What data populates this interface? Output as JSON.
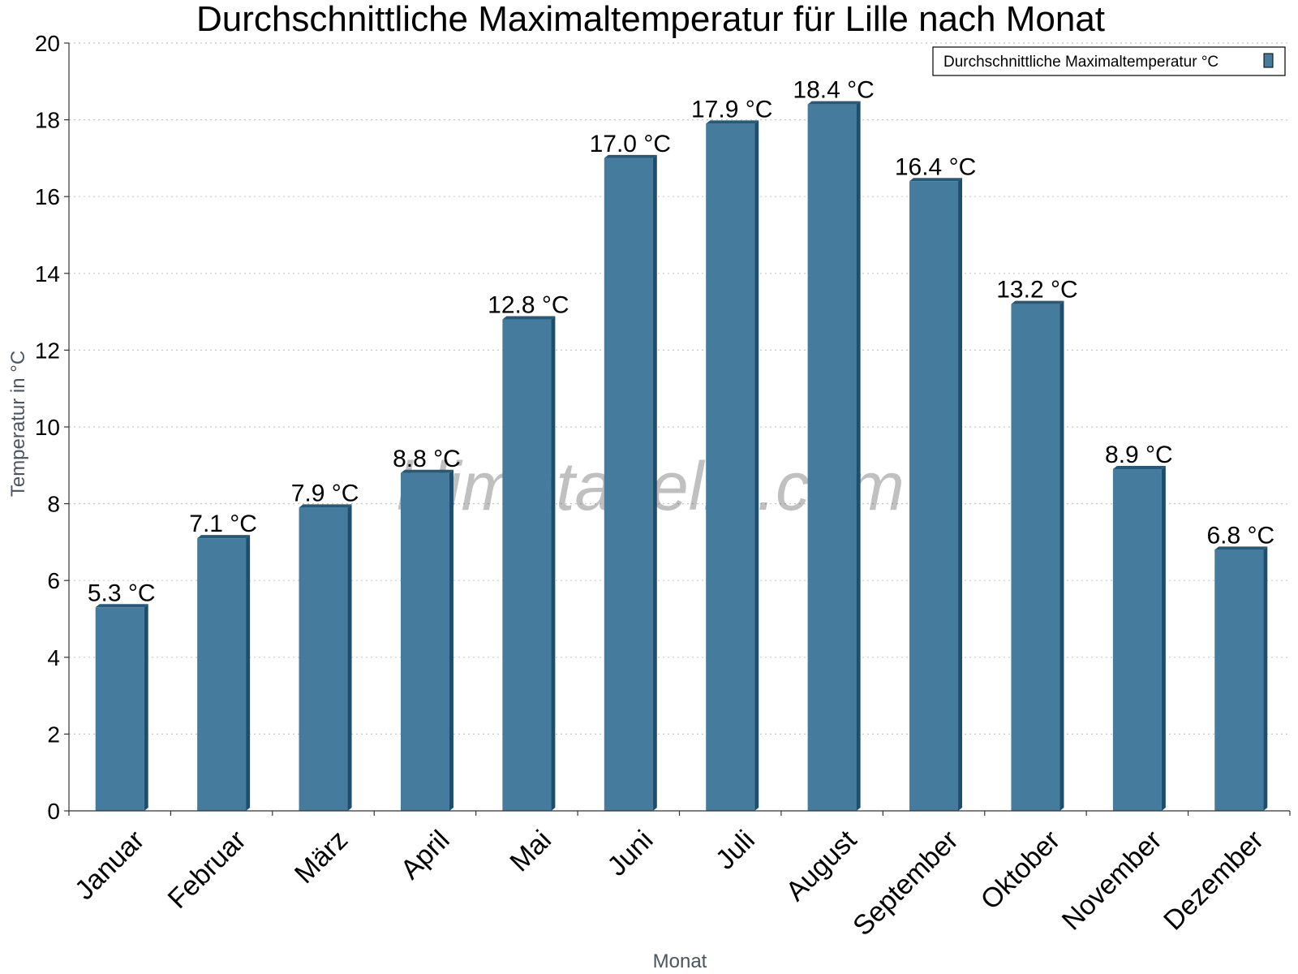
{
  "chart_data": {
    "type": "bar",
    "title": "Durchschnittliche Maximaltemperatur für Lille nach Monat",
    "xlabel": "Monat",
    "ylabel": "Temperatur in °C",
    "categories": [
      "Januar",
      "Februar",
      "März",
      "April",
      "Mai",
      "Juni",
      "Juli",
      "August",
      "September",
      "Oktober",
      "November",
      "Dezember"
    ],
    "series": [
      {
        "name": "Durchschnittliche Maximaltemperatur °C",
        "values": [
          5.3,
          7.1,
          7.9,
          8.8,
          12.8,
          17.0,
          17.9,
          18.4,
          16.4,
          13.2,
          8.9,
          6.8
        ],
        "labels": [
          "5.3 °C",
          "7.1 °C",
          "7.9 °C",
          "8.8 °C",
          "12.8 °C",
          "17.0 °C",
          "17.9 °C",
          "18.4 °C",
          "16.4 °C",
          "13.2 °C",
          "8.9 °C",
          "6.8 °C"
        ]
      }
    ],
    "ylim": [
      0,
      20
    ],
    "yticks": [
      0,
      2,
      4,
      6,
      8,
      10,
      12,
      14,
      16,
      18,
      20
    ],
    "grid": true,
    "legend_position": "top-right",
    "colors": {
      "bar_fill": "#457b9d",
      "bar_side": "#1d4e6e",
      "bar_top": "#245a7c",
      "grid": "#c8c8c8",
      "axis": "#333333"
    }
  },
  "watermark": "klimatabelle.com"
}
